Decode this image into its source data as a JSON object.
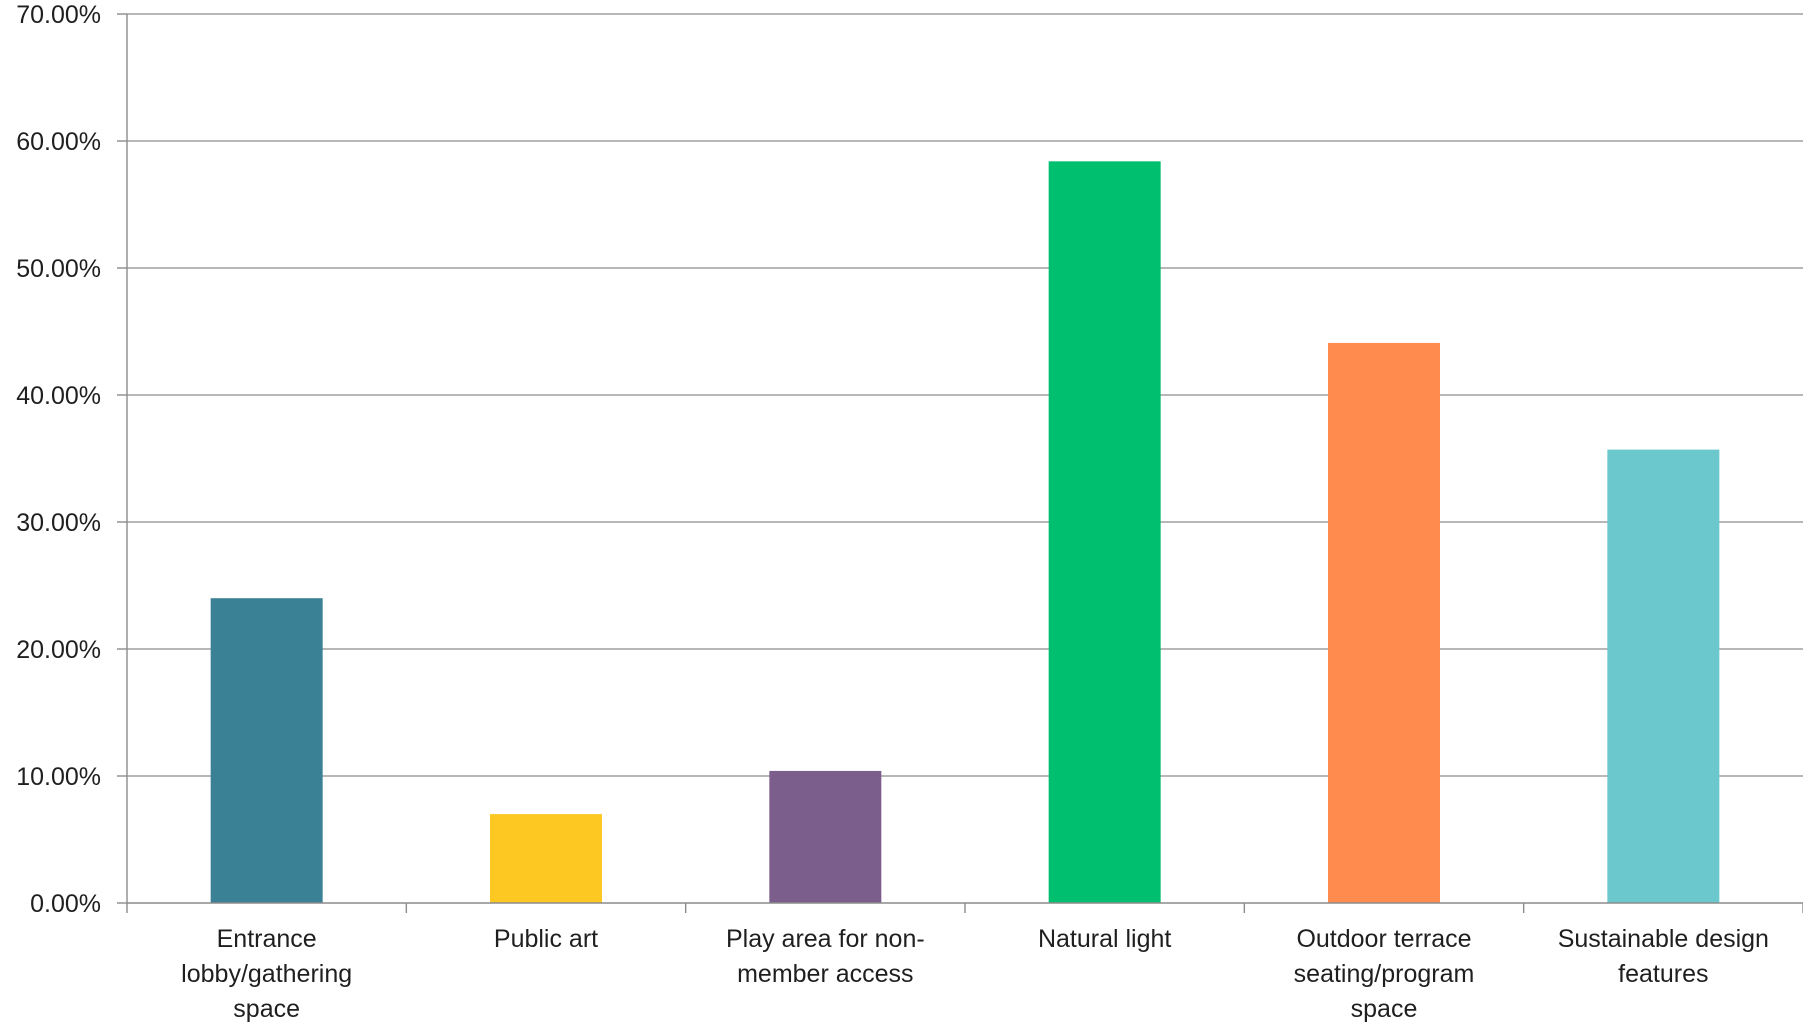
{
  "chart_data": {
    "type": "bar",
    "title": "",
    "xlabel": "",
    "ylabel": "",
    "ylim": [
      0,
      70
    ],
    "y_ticks": [
      0,
      10,
      20,
      30,
      40,
      50,
      60,
      70
    ],
    "y_tick_labels": [
      "0.00%",
      "10.00%",
      "20.00%",
      "30.00%",
      "40.00%",
      "50.00%",
      "60.00%",
      "70.00%"
    ],
    "grid": true,
    "legend": "none",
    "categories": [
      "Entrance lobby/gathering space",
      "Public art",
      "Play area for non-member access",
      "Natural light",
      "Outdoor terrace seating/program space",
      "Sustainable design features"
    ],
    "category_label_lines": [
      [
        "Entrance",
        "lobby/gathering",
        "space"
      ],
      [
        "Public art"
      ],
      [
        "Play area for non-",
        "member access"
      ],
      [
        "Natural light"
      ],
      [
        "Outdoor terrace",
        "seating/program",
        "space"
      ],
      [
        "Sustainable design",
        "features"
      ]
    ],
    "values": [
      24.0,
      7.0,
      10.4,
      58.4,
      44.1,
      35.7
    ],
    "colors": [
      "#3b8196",
      "#fcc821",
      "#7c5e8c",
      "#00bf6f",
      "#ff8b4f",
      "#6bc8cd"
    ],
    "grid_color": "#8c8c8c"
  }
}
